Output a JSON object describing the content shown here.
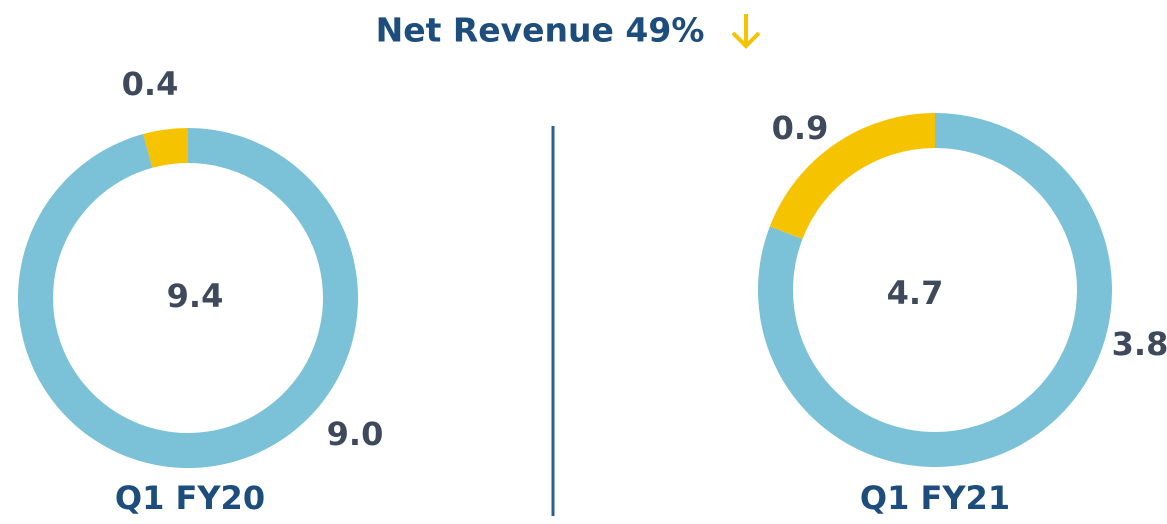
{
  "title": "Net Revenue 49%",
  "chart_data": [
    {
      "type": "donut",
      "title": "Q1 FY20",
      "total": 9.4,
      "categories": [
        null,
        null
      ],
      "values": [
        9.0,
        0.4
      ],
      "value_labels": [
        "9.0",
        "0.4"
      ],
      "colors": [
        "#7bc1d7",
        "#f6c300"
      ]
    },
    {
      "type": "donut",
      "title": "Q1 FY21",
      "total": 4.7,
      "categories": [
        null,
        null
      ],
      "values": [
        3.8,
        0.9
      ],
      "value_labels": [
        "3.8",
        "0.9"
      ],
      "colors": [
        "#7bc1d7",
        "#f6c300"
      ]
    }
  ]
}
